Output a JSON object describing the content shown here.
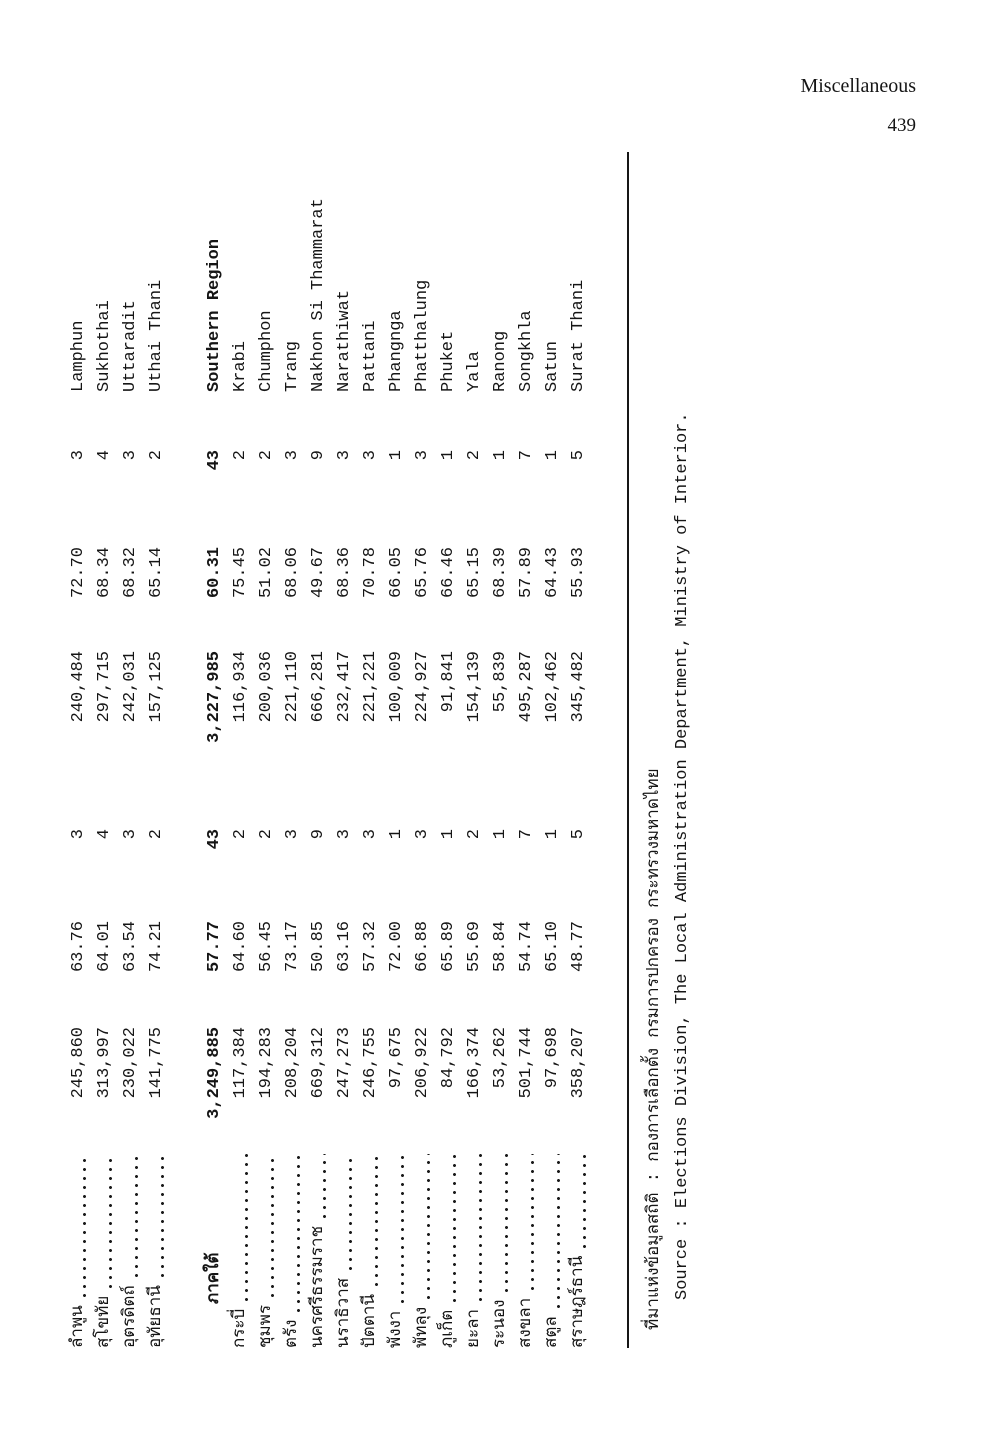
{
  "page": {
    "header_label": "Miscellaneous",
    "page_number": "439"
  },
  "colors": {
    "ink": "#151515",
    "paper": "#ffffff"
  },
  "table": {
    "rows": [
      {
        "thai": "ลำพูน",
        "eng": "Lamphun",
        "bold": false,
        "leader": true,
        "cols": [
          "245,860",
          "63.76",
          "3",
          "240,484",
          "72.70",
          "3"
        ]
      },
      {
        "thai": "สุโขทัย",
        "eng": "Sukhothai",
        "bold": false,
        "leader": true,
        "cols": [
          "313,997",
          "64.01",
          "4",
          "297,715",
          "68.34",
          "4"
        ]
      },
      {
        "thai": "อุตรดิตถ์",
        "eng": "Uttaradit",
        "bold": false,
        "leader": true,
        "cols": [
          "230,022",
          "63.54",
          "3",
          "242,031",
          "68.32",
          "3"
        ]
      },
      {
        "thai": "อุทัยธานี",
        "eng": "Uthai Thani",
        "bold": false,
        "leader": true,
        "cols": [
          "141,775",
          "74.21",
          "2",
          "157,125",
          "65.14",
          "2"
        ]
      },
      {
        "thai": "ภาคใต้",
        "eng": "Southern Region",
        "bold": true,
        "leader": false,
        "cols": [
          "3,249,885",
          "57.77",
          "43",
          "3,227,985",
          "60.31",
          "43"
        ]
      },
      {
        "thai": "กระบี่",
        "eng": "Krabi",
        "bold": false,
        "leader": true,
        "cols": [
          "117,384",
          "64.60",
          "2",
          "116,934",
          "75.45",
          "2"
        ]
      },
      {
        "thai": "ชุมพร",
        "eng": "Chumphon",
        "bold": false,
        "leader": true,
        "cols": [
          "194,283",
          "56.45",
          "2",
          "200,036",
          "51.02",
          "2"
        ]
      },
      {
        "thai": "ตรัง",
        "eng": "Trang",
        "bold": false,
        "leader": true,
        "cols": [
          "208,204",
          "73.17",
          "3",
          "221,110",
          "68.06",
          "3"
        ]
      },
      {
        "thai": "นครศรีธรรมราช",
        "eng": "Nakhon Si Thammarat",
        "bold": false,
        "leader": true,
        "cols": [
          "669,312",
          "50.85",
          "9",
          "666,281",
          "49.67",
          "9"
        ]
      },
      {
        "thai": "นราธิวาส",
        "eng": "Narathiwat",
        "bold": false,
        "leader": true,
        "cols": [
          "247,273",
          "63.16",
          "3",
          "232,417",
          "68.36",
          "3"
        ]
      },
      {
        "thai": "ปัตตานี",
        "eng": "Pattani",
        "bold": false,
        "leader": true,
        "cols": [
          "246,755",
          "57.32",
          "3",
          "221,221",
          "70.78",
          "3"
        ]
      },
      {
        "thai": "พังงา",
        "eng": "Phangnga",
        "bold": false,
        "leader": true,
        "cols": [
          "97,675",
          "72.00",
          "1",
          "100,009",
          "66.05",
          "1"
        ]
      },
      {
        "thai": "พัทลุง",
        "eng": "Phatthalung",
        "bold": false,
        "leader": true,
        "cols": [
          "206,922",
          "66.88",
          "3",
          "224,927",
          "65.76",
          "3"
        ]
      },
      {
        "thai": "ภูเก็ต",
        "eng": "Phuket",
        "bold": false,
        "leader": true,
        "cols": [
          "84,792",
          "65.89",
          "1",
          "91,841",
          "66.46",
          "1"
        ]
      },
      {
        "thai": "ยะลา",
        "eng": "Yala",
        "bold": false,
        "leader": true,
        "cols": [
          "166,374",
          "55.69",
          "2",
          "154,139",
          "65.15",
          "2"
        ]
      },
      {
        "thai": "ระนอง",
        "eng": "Ranong",
        "bold": false,
        "leader": true,
        "cols": [
          "53,262",
          "58.84",
          "1",
          "55,839",
          "68.39",
          "1"
        ]
      },
      {
        "thai": "สงขลา",
        "eng": "Songkhla",
        "bold": false,
        "leader": true,
        "cols": [
          "501,744",
          "54.74",
          "7",
          "495,287",
          "57.89",
          "7"
        ]
      },
      {
        "thai": "สตูล",
        "eng": "Satun",
        "bold": false,
        "leader": true,
        "cols": [
          "97,698",
          "65.10",
          "1",
          "102,462",
          "64.43",
          "1"
        ]
      },
      {
        "thai": "สุราษฎร์ธานี",
        "eng": "Surat Thani",
        "bold": false,
        "leader": true,
        "cols": [
          "358,207",
          "48.77",
          "5",
          "345,482",
          "55.93",
          "5"
        ]
      }
    ]
  },
  "source": {
    "thai": "ที่มาแห่งข้อมูลสถิติ : กองการเลือกตั้ง กรมการปกครอง กระทรวงมหาดไทย",
    "english": "Source : Elections Division, The Local Administration Department, Ministry of Interior."
  }
}
